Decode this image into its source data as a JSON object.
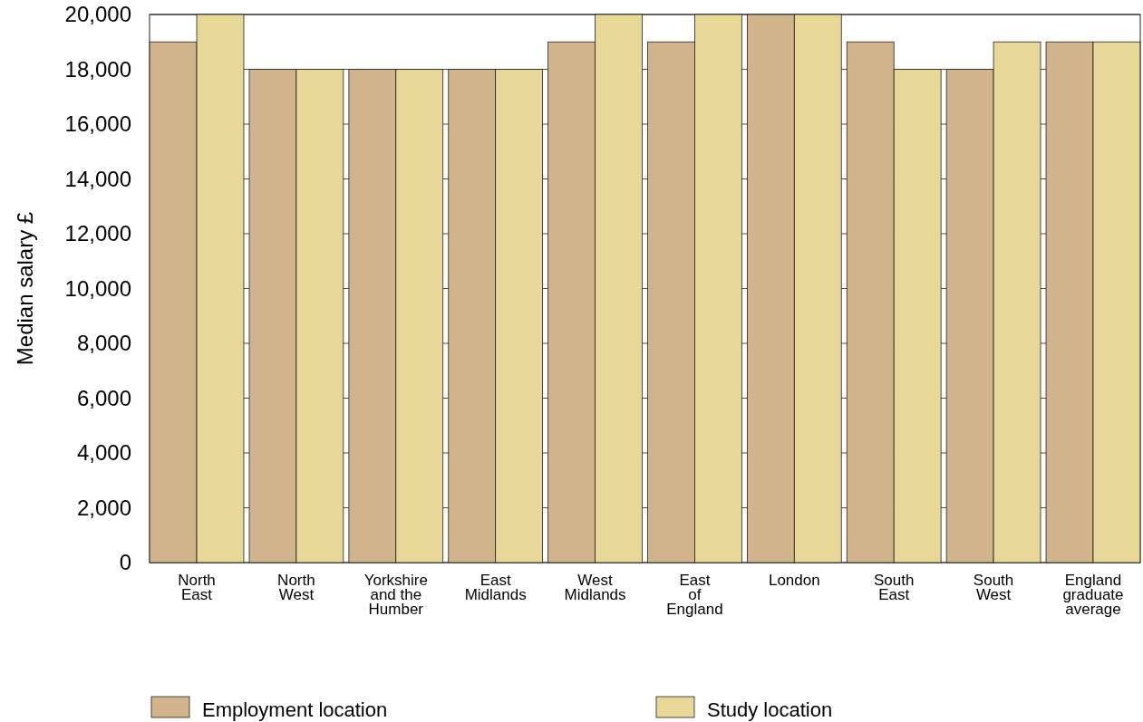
{
  "chart_data": {
    "type": "bar",
    "ylabel": "Median salary £",
    "categories": [
      "North\nEast",
      "North\nWest",
      "Yorkshire\nand the\nHumber",
      "East\nMidlands",
      "West\nMidlands",
      "East\nof\nEngland",
      "London",
      "South\nEast",
      "South\nWest",
      "England\ngraduate\naverage"
    ],
    "series": [
      {
        "name": "Employment location",
        "color": "#d2b48c",
        "values": [
          19000,
          18000,
          18000,
          18000,
          19000,
          19000,
          20000,
          19000,
          18000,
          19000
        ]
      },
      {
        "name": "Study location",
        "color": "#e8d898",
        "values": [
          20000,
          18000,
          18000,
          18000,
          20000,
          20000,
          20000,
          18000,
          19000,
          19000
        ]
      }
    ],
    "ylim": [
      0,
      20000
    ],
    "yticks": [
      {
        "value": 0,
        "label": "0"
      },
      {
        "value": 2000,
        "label": "2,000"
      },
      {
        "value": 4000,
        "label": "4,000"
      },
      {
        "value": 6000,
        "label": "6,000"
      },
      {
        "value": 8000,
        "label": "8,000"
      },
      {
        "value": 10000,
        "label": "10,000"
      },
      {
        "value": 12000,
        "label": "12,000"
      },
      {
        "value": 14000,
        "label": "14,000"
      },
      {
        "value": 16000,
        "label": "16,000"
      },
      {
        "value": 18000,
        "label": "18,000"
      },
      {
        "value": 20000,
        "label": "20,000"
      }
    ],
    "grid": "y",
    "legend": "bottom"
  }
}
